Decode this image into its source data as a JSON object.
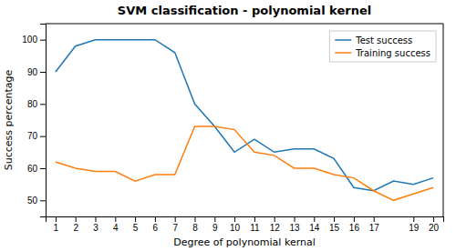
{
  "chart_data": {
    "type": "line",
    "title": "SVM classification - polynomial kernel",
    "xlabel": "Degree of polynomial kernal",
    "ylabel": "Success percentage",
    "x": [
      1,
      2,
      3,
      4,
      5,
      6,
      7,
      8,
      9,
      10,
      11,
      12,
      13,
      14,
      15,
      16,
      17,
      18,
      19,
      20
    ],
    "series": [
      {
        "name": "Test success",
        "values": [
          90,
          98,
          100,
          100,
          100,
          100,
          96,
          80,
          73,
          65,
          69,
          65,
          66,
          66,
          63,
          54,
          53,
          56,
          55,
          57
        ]
      },
      {
        "name": "Training success",
        "values": [
          62,
          60,
          59,
          59,
          56,
          58,
          58,
          73,
          73,
          72,
          65,
          64,
          60,
          60,
          58,
          57,
          53,
          50,
          52,
          54
        ]
      }
    ],
    "xlim": [
      0.5,
      20.5
    ],
    "ylim": [
      45,
      105
    ],
    "xticks": [
      1,
      2,
      3,
      4,
      5,
      6,
      7,
      8,
      9,
      10,
      11,
      12,
      13,
      14,
      15,
      16,
      17,
      19,
      20
    ],
    "yticks": [
      50,
      60,
      70,
      80,
      90,
      100
    ],
    "grid": false,
    "legend": "top-right"
  }
}
